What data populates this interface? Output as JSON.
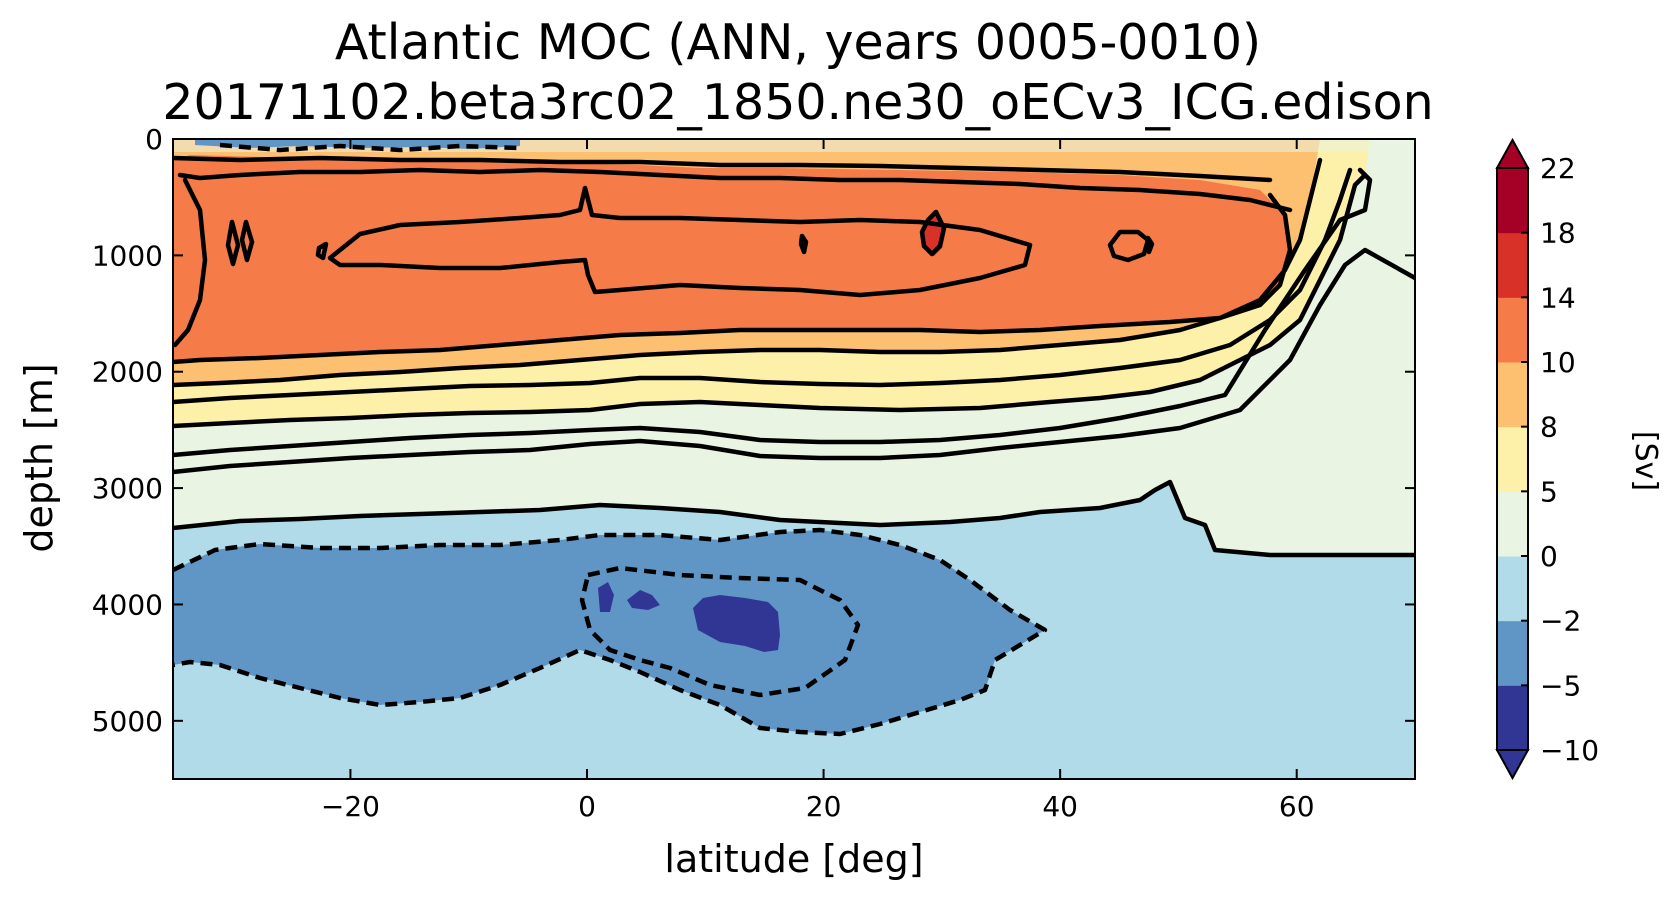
{
  "chart_data": {
    "type": "contour",
    "title": "Atlantic MOC (ANN, years 0005-0010)",
    "subtitle": "20171102.beta3rc02_1850.ne30_oECv3_ICG.edison",
    "xlabel": "latitude [deg]",
    "ylabel": "depth [m]",
    "xlim": [
      -35,
      70
    ],
    "ylim": [
      5500,
      0
    ],
    "xticks": [
      -20,
      0,
      20,
      40,
      60
    ],
    "xtick_labels": [
      "−20",
      "0",
      "20",
      "40",
      "60"
    ],
    "yticks": [
      0,
      1000,
      2000,
      3000,
      4000,
      5000
    ],
    "ytick_labels": [
      "0",
      "1000",
      "2000",
      "3000",
      "4000",
      "5000"
    ],
    "colorbar": {
      "label": "[Sv]",
      "levels": [
        -10,
        -5,
        -2,
        0,
        5,
        8,
        10,
        14,
        18,
        22
      ],
      "tick_labels": [
        "−10",
        "−5",
        "−2",
        "0",
        "5",
        "8",
        "10",
        "14",
        "18",
        "22"
      ],
      "colors": [
        "#313695",
        "#6096c6",
        "#b2dbea",
        "#eaf4e2",
        "#fdf0a8",
        "#fdbf70",
        "#f57c49",
        "#d83128",
        "#a50026"
      ],
      "extend": "both"
    },
    "contour_fields": {
      "min_contour_sv": -5,
      "max_contour_sv": 16,
      "positive_line_style": "solid",
      "negative_line_style": "dashed",
      "overturning_cell_upper_max": "14-18 near 28-30N, 600-1000 m",
      "abyssal_cell_min": "below -5 near 2-15N, 3900-4300 m"
    }
  }
}
